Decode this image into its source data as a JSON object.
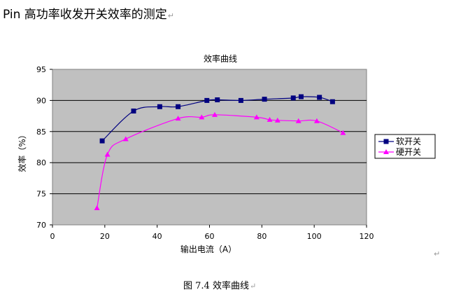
{
  "document": {
    "heading": "Pin 高功率收发开关效率的测定",
    "caption": "图 7.4  效率曲线",
    "paragraph_mark": "↵"
  },
  "chart_data": {
    "type": "line",
    "title": "效率曲线",
    "xlabel": "输出电流（A）",
    "ylabel": "效率（%）",
    "xlim": [
      0,
      120
    ],
    "ylim": [
      70,
      95
    ],
    "xticks": [
      0,
      20,
      40,
      60,
      80,
      100,
      120
    ],
    "yticks": [
      70,
      75,
      80,
      85,
      90,
      95
    ],
    "grid": "horizontal",
    "legend_position": "right",
    "plot_background": "#c0c0c0",
    "series": [
      {
        "name": "软开关",
        "color": "#000080",
        "marker": "square",
        "x": [
          19,
          31,
          41,
          48,
          59,
          63,
          72,
          81,
          92,
          95,
          102,
          107
        ],
        "y": [
          83.5,
          88.3,
          89.0,
          89.0,
          90.0,
          90.1,
          90.0,
          90.2,
          90.4,
          90.6,
          90.5,
          89.8
        ]
      },
      {
        "name": "硬开关",
        "color": "#ff00ff",
        "marker": "triangle",
        "x": [
          17,
          21,
          28,
          48,
          57,
          62,
          78,
          83,
          86,
          94,
          101,
          111
        ],
        "y": [
          72.7,
          81.3,
          83.8,
          87.1,
          87.3,
          87.7,
          87.3,
          86.9,
          86.8,
          86.7,
          86.7,
          84.8
        ]
      }
    ]
  }
}
